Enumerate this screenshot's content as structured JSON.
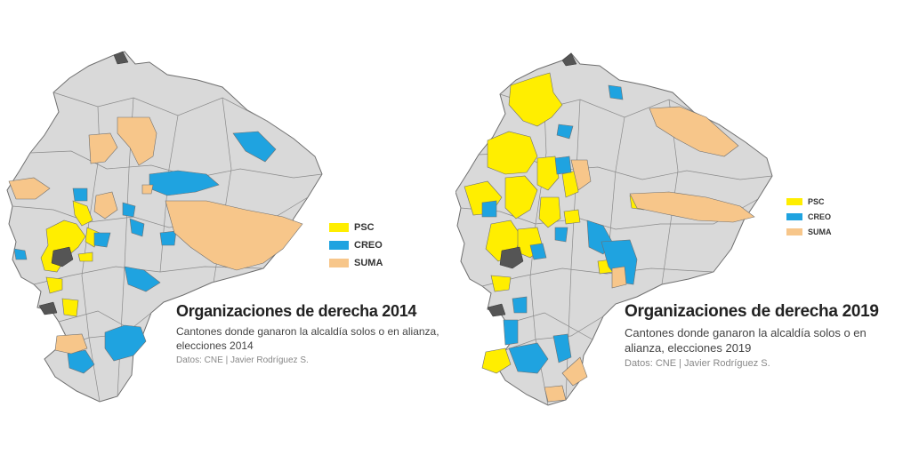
{
  "colors": {
    "PSC": "#ffee00",
    "CREO": "#1fa3e0",
    "SUMA": "#f7c68a",
    "base": "#d9d9d9",
    "border": "#6f6f6f"
  },
  "maps": [
    {
      "title": "Organizaciones de derecha 2014",
      "subtitle": "Cantones donde ganaron la alcaldía solos o en alianza, elecciones 2014",
      "source": "Datos: CNE  |  Javier Rodríguez S.",
      "legend": [
        {
          "party": "PSC",
          "label": "PSC"
        },
        {
          "party": "CREO",
          "label": "CREO"
        },
        {
          "party": "SUMA",
          "label": "SUMA"
        }
      ]
    },
    {
      "title": "Organizaciones de derecha 2019",
      "subtitle": "Cantones donde ganaron la alcaldía solos o en alianza, elecciones 2019",
      "source": "Datos: CNE  |  Javier Rodríguez S.",
      "legend": [
        {
          "party": "PSC",
          "label": "PSC"
        },
        {
          "party": "CREO",
          "label": "CREO"
        },
        {
          "party": "SUMA",
          "label": "SUMA"
        }
      ]
    }
  ]
}
